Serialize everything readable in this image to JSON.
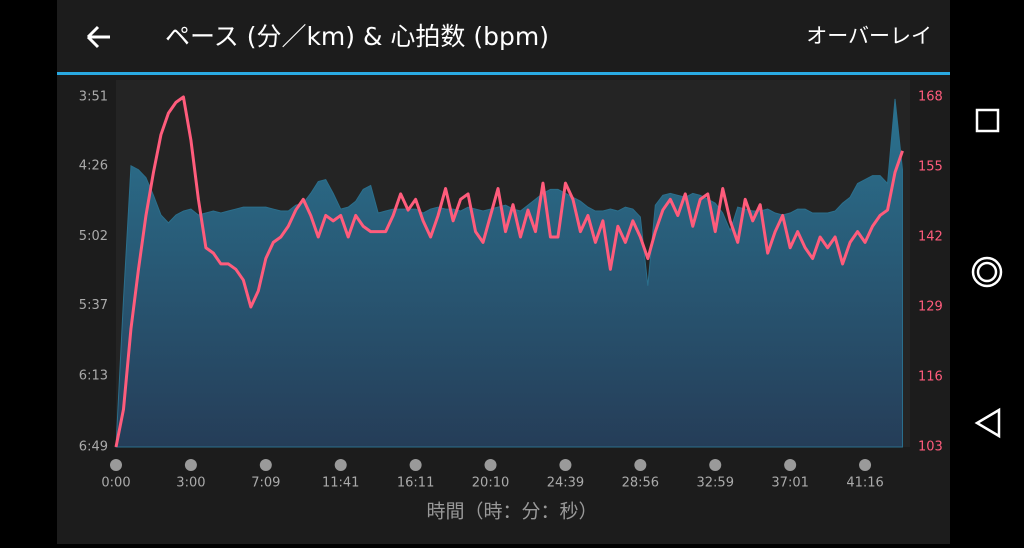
{
  "header": {
    "title": "ペース (分／km) & 心拍数 (bpm)",
    "action": "オーバーレイ"
  },
  "chart_data": {
    "type": "area-line",
    "x_label": "時間（時：分：秒）",
    "x": [
      0,
      1,
      2,
      3,
      4,
      5,
      6,
      7,
      8,
      9,
      10,
      11,
      12,
      13,
      14,
      15,
      16,
      17,
      18,
      19,
      20,
      21,
      22,
      23,
      24,
      25,
      26,
      27,
      28,
      29,
      30,
      31,
      32,
      33,
      34,
      35,
      36,
      37,
      38,
      39,
      40,
      41,
      42,
      43,
      44,
      45,
      46,
      47,
      48,
      49,
      50,
      51,
      52,
      53,
      54,
      55,
      56,
      57,
      58,
      59,
      60,
      61,
      62,
      63,
      64,
      65,
      66,
      67,
      68,
      69,
      70,
      71,
      72,
      73,
      74,
      75,
      76,
      77,
      78,
      79,
      80,
      81,
      82,
      83,
      84,
      85,
      86,
      87,
      88,
      89,
      90,
      91,
      92,
      93,
      94,
      95,
      96,
      97,
      98,
      99,
      100,
      101,
      102,
      103,
      104,
      105
    ],
    "xlim": [
      0,
      106
    ],
    "xticks": [
      {
        "value": 0,
        "label": "0:00"
      },
      {
        "value": 10,
        "label": "3:00"
      },
      {
        "value": 20,
        "label": "7:09"
      },
      {
        "value": 30,
        "label": "11:41"
      },
      {
        "value": 40,
        "label": "16:11"
      },
      {
        "value": 50,
        "label": "20:10"
      },
      {
        "value": 60,
        "label": "24:39"
      },
      {
        "value": 70,
        "label": "28:56"
      },
      {
        "value": 80,
        "label": "32:59"
      },
      {
        "value": 90,
        "label": "37:01"
      },
      {
        "value": 100,
        "label": "41:16"
      }
    ],
    "ylim": [
      409,
      231
    ],
    "yticks": [
      {
        "value": 409,
        "label": "6:49"
      },
      {
        "value": 373,
        "label": "6:13"
      },
      {
        "value": 337,
        "label": "5:37"
      },
      {
        "value": 302,
        "label": "5:02"
      },
      {
        "value": 266,
        "label": "4:26"
      },
      {
        "value": 231,
        "label": "3:51"
      }
    ],
    "y2lim": [
      103,
      168
    ],
    "y2ticks": [
      103,
      116,
      129,
      142,
      155,
      168
    ],
    "series": [
      {
        "color": "#2b6f8c",
        "axis": "y",
        "values": [
          409,
          334,
          266,
          268,
          272,
          281,
          291,
          295,
          291,
          289,
          288,
          291,
          290,
          289,
          290,
          289,
          288,
          287,
          287,
          287,
          287,
          288,
          289,
          289,
          286,
          285,
          280,
          274,
          273,
          280,
          288,
          287,
          284,
          278,
          276,
          290,
          289,
          288,
          288,
          288,
          288,
          290,
          288,
          287,
          288,
          288,
          289,
          287,
          288,
          289,
          288,
          287,
          286,
          288,
          289,
          286,
          283,
          280,
          278,
          278,
          280,
          282,
          284,
          287,
          289,
          289,
          288,
          289,
          287,
          288,
          292,
          327,
          286,
          281,
          280,
          281,
          282,
          280,
          281,
          283,
          285,
          290,
          299,
          287,
          288,
          289,
          289,
          288,
          290,
          291,
          290,
          288,
          288,
          290,
          290,
          290,
          289,
          285,
          282,
          275,
          273,
          271,
          271,
          275,
          232,
          268
        ]
      },
      {
        "color": "#ff5c7c",
        "axis": "y2",
        "values": [
          103,
          110,
          125,
          136,
          146,
          154,
          161,
          165,
          167,
          168,
          160,
          149,
          140,
          139,
          137,
          137,
          136,
          134,
          129,
          132,
          138,
          141,
          142,
          144,
          147,
          149,
          146,
          142,
          146,
          145,
          146,
          142,
          146,
          144,
          143,
          143,
          143,
          146,
          150,
          147,
          149,
          145,
          142,
          146,
          151,
          145,
          149,
          150,
          143,
          141,
          146,
          151,
          143,
          148,
          142,
          147,
          143,
          152,
          142,
          142,
          152,
          149,
          143,
          146,
          141,
          145,
          136,
          144,
          141,
          145,
          142,
          138,
          143,
          147,
          149,
          146,
          150,
          144,
          149,
          150,
          143,
          151,
          145,
          141,
          149,
          145,
          148,
          139,
          143,
          146,
          140,
          143,
          140,
          138,
          142,
          140,
          142,
          137,
          141,
          143,
          141,
          144,
          146,
          147,
          154,
          158
        ]
      }
    ]
  }
}
